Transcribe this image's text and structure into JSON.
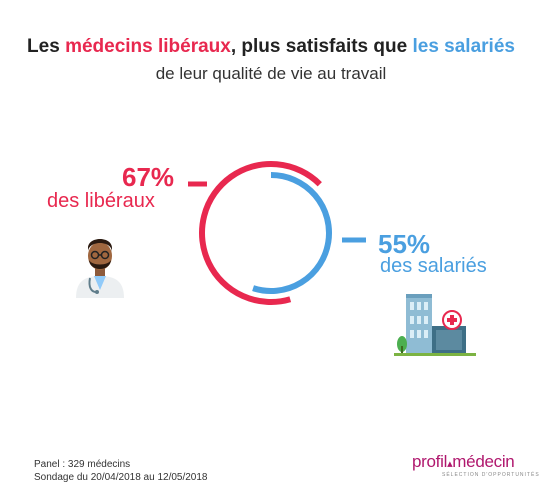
{
  "title": {
    "part1": "Les ",
    "liberal": "médecins libéraux",
    "part2": ", plus satisfaits que ",
    "salaried": "les salariés",
    "line2": "de leur qualité de vie au travail"
  },
  "colors": {
    "liberal": "#e8284f",
    "salaried": "#4a9fe0",
    "text": "#222222",
    "logo": "#b0186e"
  },
  "chart_data": {
    "type": "pie",
    "series": [
      {
        "name": "des libéraux",
        "value": 67,
        "label": "67%",
        "color": "#e8284f"
      },
      {
        "name": "des salariés",
        "value": 55,
        "label": "55%",
        "color": "#4a9fe0"
      }
    ]
  },
  "labels": {
    "liberal_pct": "67%",
    "liberal_text": "des libéraux",
    "salaried_pct": "55%",
    "salaried_text": "des salariés"
  },
  "footer": {
    "panel": "Panel : 329 médecins",
    "survey": "Sondage du 20/04/2018 au 12/05/2018"
  },
  "logo": {
    "part1": "profil",
    "part2": "médecin",
    "tagline": "SÉLECTION D'OPPORTUNITÉS"
  },
  "icons": {
    "doctor": "doctor-icon",
    "hospital": "hospital-icon"
  }
}
